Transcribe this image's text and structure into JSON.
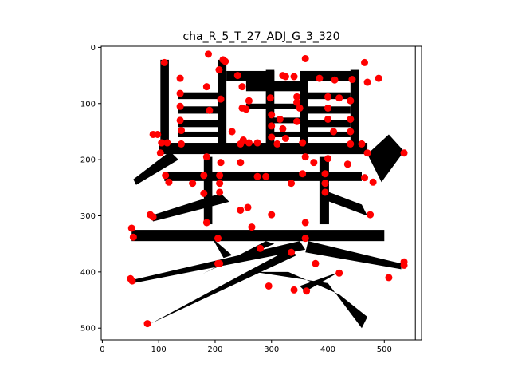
{
  "chart_data": {
    "type": "scatter",
    "title": "cha_R_5_T_27_ADJ_G_3_320",
    "xlabel": "",
    "ylabel": "",
    "xlim": [
      -2,
      566
    ],
    "ylim": [
      521,
      -2
    ],
    "y_inverted": true,
    "grid": false,
    "legend": "none",
    "xticks": [
      0,
      100,
      200,
      300,
      400,
      500
    ],
    "yticks": [
      0,
      100,
      200,
      300,
      400,
      500
    ],
    "glyph_right_bar": 555,
    "colors": {
      "points": "#ff0000",
      "glyph": "#000000"
    },
    "series": [
      {
        "values": [
          [
            188,
            12
          ],
          [
            110,
            27
          ],
          [
            214,
            22
          ],
          [
            218,
            25
          ],
          [
            360,
            20
          ],
          [
            465,
            27
          ],
          [
            207,
            40
          ],
          [
            138,
            55
          ],
          [
            185,
            70
          ],
          [
            240,
            50
          ],
          [
            248,
            70
          ],
          [
            320,
            50
          ],
          [
            325,
            52
          ],
          [
            340,
            52
          ],
          [
            385,
            55
          ],
          [
            412,
            58
          ],
          [
            443,
            57
          ],
          [
            470,
            62
          ],
          [
            490,
            55
          ],
          [
            138,
            82
          ],
          [
            210,
            92
          ],
          [
            260,
            95
          ],
          [
            298,
            90
          ],
          [
            345,
            88
          ],
          [
            400,
            88
          ],
          [
            420,
            90
          ],
          [
            440,
            95
          ],
          [
            138,
            105
          ],
          [
            190,
            112
          ],
          [
            248,
            108
          ],
          [
            255,
            110
          ],
          [
            345,
            98
          ],
          [
            350,
            108
          ],
          [
            400,
            108
          ],
          [
            300,
            120
          ],
          [
            315,
            128
          ],
          [
            345,
            132
          ],
          [
            440,
            128
          ],
          [
            138,
            130
          ],
          [
            400,
            128
          ],
          [
            300,
            140
          ],
          [
            320,
            145
          ],
          [
            140,
            148
          ],
          [
            230,
            150
          ],
          [
            410,
            150
          ],
          [
            440,
            150
          ],
          [
            90,
            155
          ],
          [
            98,
            155
          ],
          [
            105,
            170
          ],
          [
            115,
            170
          ],
          [
            140,
            172
          ],
          [
            250,
            165
          ],
          [
            300,
            160
          ],
          [
            325,
            162
          ],
          [
            260,
            170
          ],
          [
            275,
            170
          ],
          [
            245,
            172
          ],
          [
            310,
            172
          ],
          [
            355,
            170
          ],
          [
            440,
            172
          ],
          [
            460,
            172
          ],
          [
            103,
            188
          ],
          [
            470,
            188
          ],
          [
            535,
            188
          ],
          [
            185,
            195
          ],
          [
            360,
            195
          ],
          [
            400,
            198
          ],
          [
            375,
            205
          ],
          [
            245,
            205
          ],
          [
            210,
            205
          ],
          [
            435,
            208
          ],
          [
            112,
            228
          ],
          [
            180,
            228
          ],
          [
            208,
            228
          ],
          [
            275,
            230
          ],
          [
            290,
            230
          ],
          [
            355,
            225
          ],
          [
            395,
            225
          ],
          [
            118,
            240
          ],
          [
            160,
            242
          ],
          [
            208,
            242
          ],
          [
            335,
            242
          ],
          [
            395,
            242
          ],
          [
            465,
            232
          ],
          [
            480,
            240
          ],
          [
            180,
            260
          ],
          [
            208,
            258
          ],
          [
            395,
            258
          ],
          [
            245,
            290
          ],
          [
            258,
            285
          ],
          [
            85,
            298
          ],
          [
            90,
            302
          ],
          [
            185,
            312
          ],
          [
            300,
            298
          ],
          [
            360,
            312
          ],
          [
            475,
            298
          ],
          [
            52,
            322
          ],
          [
            55,
            338
          ],
          [
            265,
            320
          ],
          [
            205,
            340
          ],
          [
            360,
            340
          ],
          [
            280,
            358
          ],
          [
            335,
            365
          ],
          [
            205,
            385
          ],
          [
            208,
            385
          ],
          [
            378,
            385
          ],
          [
            420,
            402
          ],
          [
            508,
            410
          ],
          [
            535,
            382
          ],
          [
            535,
            388
          ],
          [
            50,
            412
          ],
          [
            53,
            416
          ],
          [
            295,
            425
          ],
          [
            340,
            432
          ],
          [
            362,
            434
          ],
          [
            80,
            492
          ]
        ]
      }
    ]
  }
}
